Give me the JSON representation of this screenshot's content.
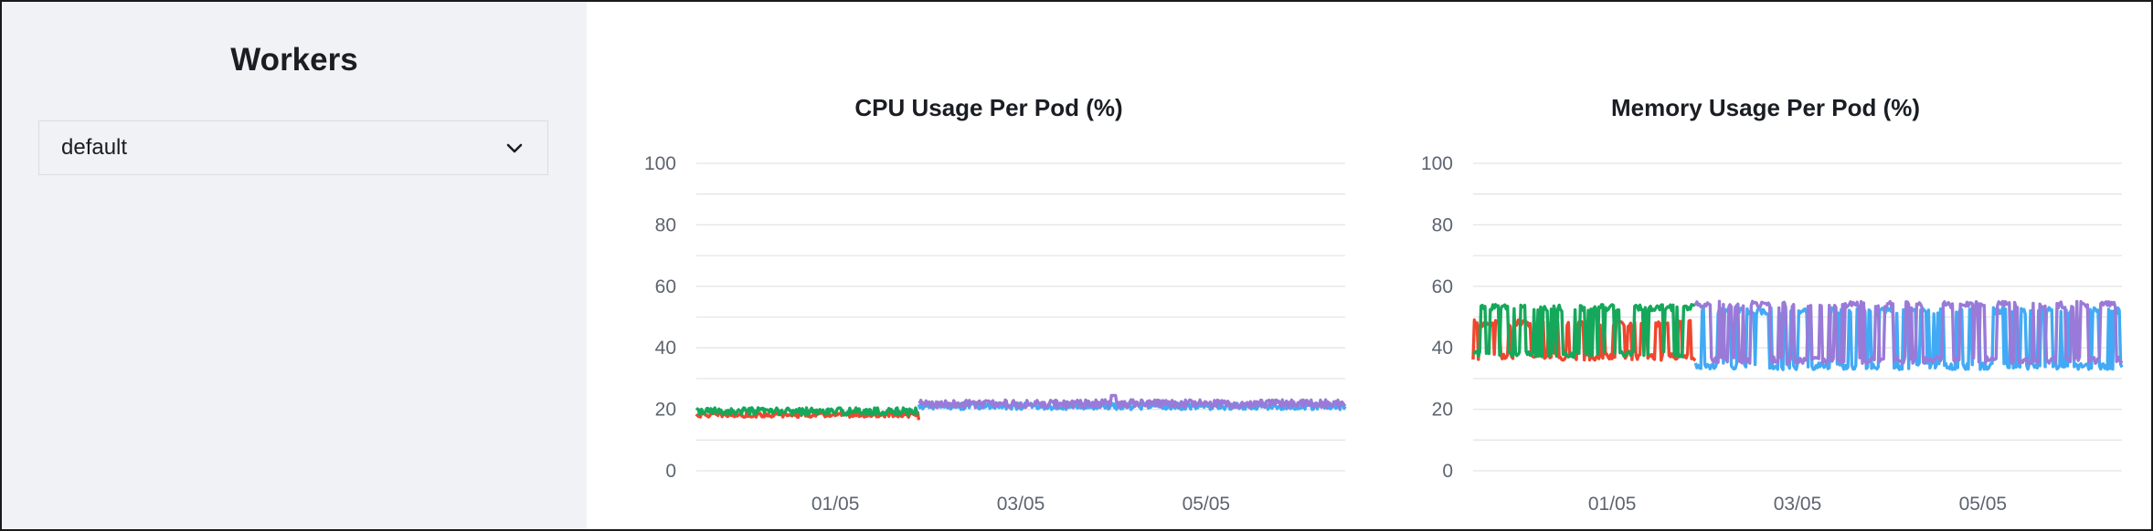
{
  "sidebar": {
    "title": "Workers",
    "worker_select": {
      "value": "default",
      "icon": "chevron-down-icon"
    }
  },
  "chart_data": [
    {
      "type": "line",
      "title": "CPU Usage Per Pod (%)",
      "xlabel": "",
      "ylabel": "",
      "ylim": [
        0,
        100
      ],
      "yticks": [
        0,
        20,
        40,
        60,
        80,
        100
      ],
      "xticks": [
        "01/05",
        "03/05",
        "05/05"
      ],
      "grid": true,
      "legend": "none",
      "series": [
        {
          "color": "#f0462d",
          "x_start": 0.0,
          "x_end": 2.4,
          "base": 18.2,
          "jitter": 0.8,
          "dip": [
            2.35,
            16.5
          ]
        },
        {
          "color": "#16a85a",
          "x_start": 0.0,
          "x_end": 2.4,
          "base": 19.3,
          "jitter": 1.2
        },
        {
          "color": "#42aaf5",
          "x_start": 2.4,
          "x_end": 7.0,
          "base": 21.0,
          "jitter": 1.1
        },
        {
          "color": "#9a7ad8",
          "x_start": 2.4,
          "x_end": 7.0,
          "base": 21.8,
          "jitter": 1.3,
          "peak": [
            4.5,
            24.5
          ]
        }
      ]
    },
    {
      "type": "line",
      "title": "Memory Usage Per Pod (%)",
      "xlabel": "",
      "ylabel": "",
      "ylim": [
        0,
        100
      ],
      "yticks": [
        0,
        20,
        40,
        60,
        80,
        100
      ],
      "xticks": [
        "01/05",
        "03/05",
        "05/05"
      ],
      "grid": true,
      "legend": "none",
      "series": [
        {
          "color": "#f0462d",
          "x_start": 0.0,
          "x_end": 2.4,
          "low": 37,
          "high": 48
        },
        {
          "color": "#16a85a",
          "x_start": 0.0,
          "x_end": 2.4,
          "low": 38,
          "high": 53
        },
        {
          "color": "#42aaf5",
          "x_start": 2.4,
          "x_end": 7.0,
          "low": 34,
          "high": 52
        },
        {
          "color": "#9a7ad8",
          "x_start": 2.4,
          "x_end": 7.0,
          "low": 36,
          "high": 54
        }
      ]
    }
  ]
}
